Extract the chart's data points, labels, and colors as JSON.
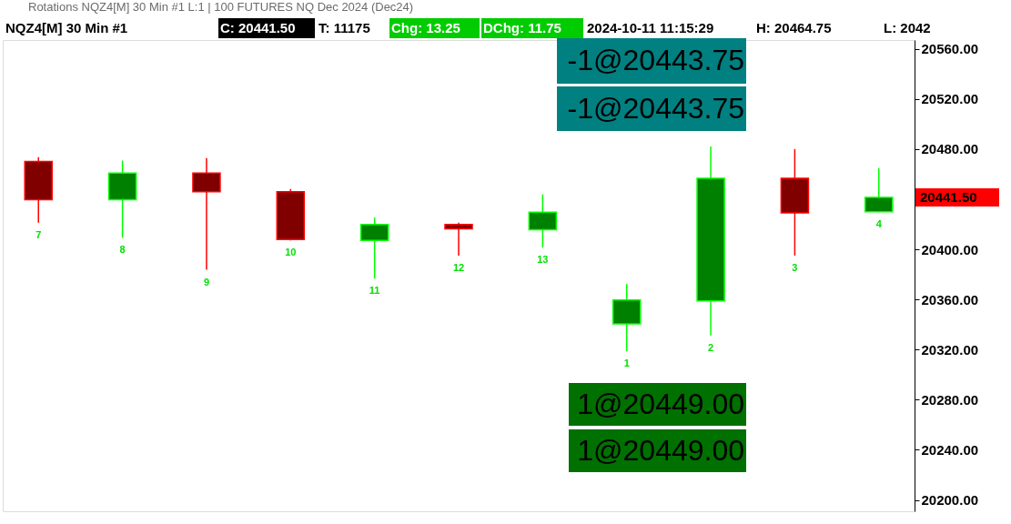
{
  "chart_data": {
    "type": "candlestick",
    "title": "Rotations NQZ4[M]  30 Min  #1 L:1 | 100 FUTURES NQ Dec 2024 (Dec24)",
    "subtitle": "NQZ4[M]  30 Min  #1",
    "categories": [
      "7",
      "8",
      "9",
      "10",
      "11",
      "12",
      "13",
      "1",
      "2",
      "3",
      "4"
    ],
    "ohlc": [
      [
        20470.1,
        20473.6,
        20421.2,
        20439.6
      ],
      [
        20439.6,
        20470.8,
        20409.2,
        20460.9
      ],
      [
        20460.9,
        20472.9,
        20383.7,
        20446.0
      ],
      [
        20446.0,
        20448.1,
        20407.1,
        20407.8
      ],
      [
        20407.1,
        20425.5,
        20376.6,
        20419.8
      ],
      [
        20419.8,
        20421.2,
        20395.0,
        20416.3
      ],
      [
        20415.6,
        20443.9,
        20401.4,
        20429.7
      ],
      [
        20340.5,
        20372.4,
        20318.6,
        20359.6
      ],
      [
        20358.9,
        20482.1,
        20331.3,
        20456.6
      ],
      [
        20456.6,
        20480.0,
        20395.0,
        20429.0
      ],
      [
        20430.0,
        20464.75,
        20429.7,
        20441.5
      ]
    ],
    "colors": [
      "#800000",
      "#008000",
      "#800000",
      "#800000",
      "#008000",
      "#800000",
      "#008000",
      "#008000",
      "#008000",
      "#800000",
      "#008000"
    ],
    "ylim": [
      20191,
      20567
    ],
    "yticks": [
      {
        "value": 20200,
        "label": "20200.00"
      },
      {
        "value": 20240,
        "label": "20240.00"
      },
      {
        "value": 20280,
        "label": "20280.00"
      },
      {
        "value": 20320,
        "label": "20320.00"
      },
      {
        "value": 20360,
        "label": "20360.00"
      },
      {
        "value": 20400,
        "label": "20400.00"
      },
      {
        "value": 20480,
        "label": "20480.00"
      },
      {
        "value": 20520,
        "label": "20520.00"
      },
      {
        "value": 20560,
        "label": "20560.00"
      }
    ],
    "annotations": [
      "C: 20441.50",
      "T: 11175",
      "Chg: 13.25",
      "DChg: 11.75",
      "2024-10-11 11:15:29",
      "H: 20464.75",
      "L: 2042",
      "-1@20443.75",
      "-1@20443.75",
      "1@20449.00",
      "1@20449.00",
      "20441.50"
    ],
    "grid": false
  }
}
